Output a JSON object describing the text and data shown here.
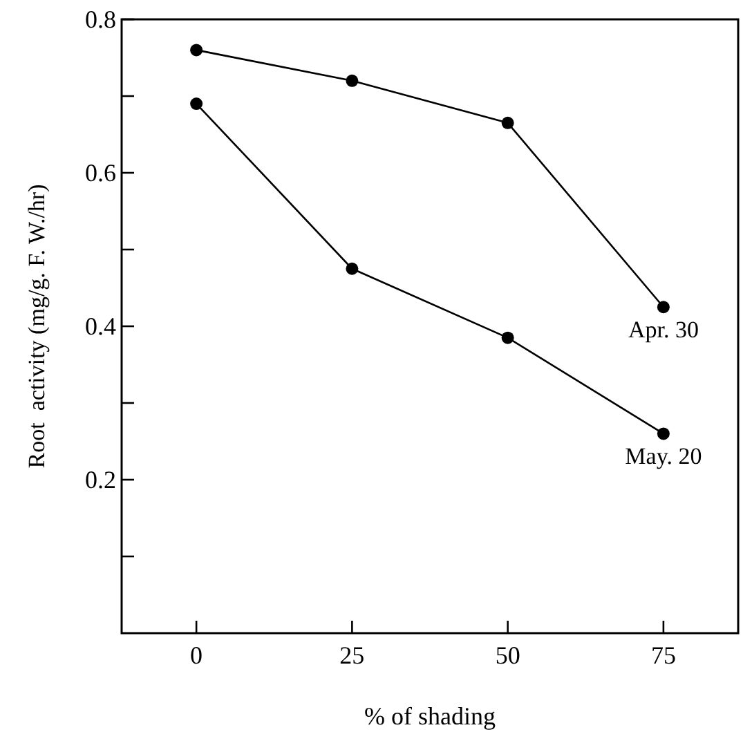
{
  "chart_data": {
    "type": "line",
    "xlabel": "% of shading",
    "ylabel": "Root  activity (mg/g. F. W./hr)",
    "x": [
      0,
      25,
      50,
      75
    ],
    "series": [
      {
        "name": "Apr. 30",
        "color": "#000000",
        "values": [
          0.76,
          0.72,
          0.665,
          0.425
        ]
      },
      {
        "name": "May. 20",
        "color": "#000000",
        "values": [
          0.69,
          0.475,
          0.385,
          0.26
        ]
      }
    ],
    "xlim": [
      -12,
      87
    ],
    "xticks": [
      0,
      25,
      50,
      75
    ],
    "ylim": [
      0,
      0.8
    ],
    "yticks": [
      {
        "value": 0.1,
        "label": null
      },
      0.2,
      {
        "value": 0.3,
        "label": null
      },
      0.4,
      {
        "value": 0.5,
        "label": null
      },
      0.6,
      {
        "value": 0.7,
        "label": null
      },
      0.8
    ],
    "grid": false,
    "marker": "circle",
    "line_style": "solid"
  }
}
